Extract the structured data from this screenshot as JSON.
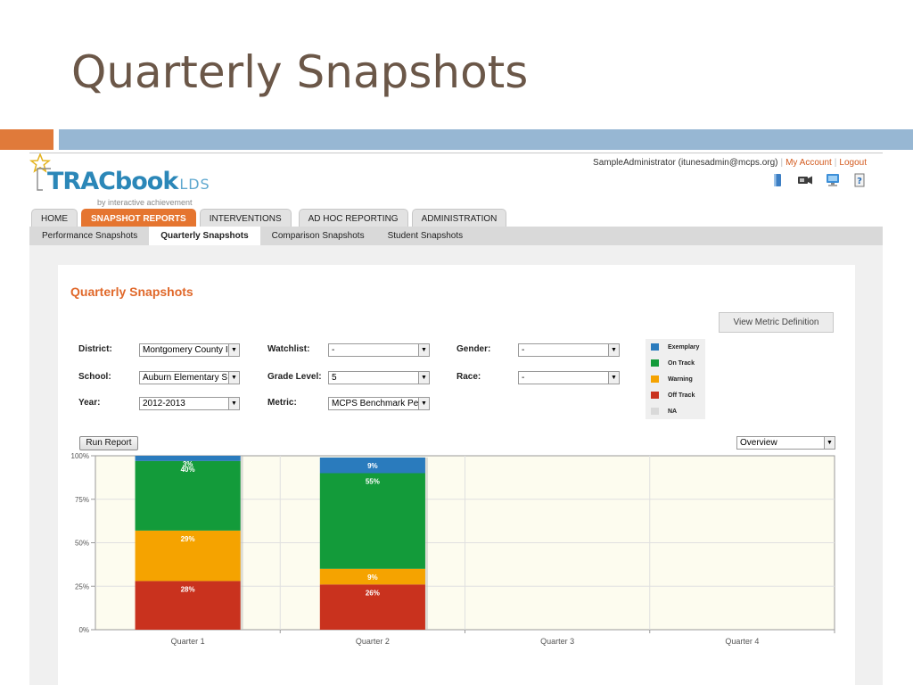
{
  "slide": {
    "title": "Quarterly Snapshots"
  },
  "header": {
    "logo_main": "TRACbook",
    "logo_suffix": "LDS",
    "logo_tagline": "by interactive achievement",
    "user": "SampleAdministrator (itunesadmin@mcps.org)",
    "my_account": "My Account",
    "logout": "Logout",
    "icons": [
      "book-icon",
      "video-camera-icon",
      "monitor-icon",
      "help-icon"
    ]
  },
  "main_tabs": [
    {
      "label": "HOME",
      "active": false
    },
    {
      "label": "SNAPSHOT REPORTS",
      "active": true
    },
    {
      "label": "INTERVENTIONS",
      "active": false
    },
    {
      "label": "AD HOC REPORTING",
      "active": false
    },
    {
      "label": "ADMINISTRATION",
      "active": false
    }
  ],
  "sub_tabs": [
    {
      "label": "Performance Snapshots",
      "active": false
    },
    {
      "label": "Quarterly Snapshots",
      "active": true
    },
    {
      "label": "Comparison Snapshots",
      "active": false
    },
    {
      "label": "Student Snapshots",
      "active": false
    }
  ],
  "panel": {
    "title": "Quarterly Snapshots",
    "view_metric_label": "View Metric Definition",
    "run_report_label": "Run Report"
  },
  "filters": {
    "district": {
      "label": "District:",
      "value": "Montgomery County I"
    },
    "school": {
      "label": "School:",
      "value": "Auburn Elementary S"
    },
    "year": {
      "label": "Year:",
      "value": "2012-2013"
    },
    "watchlist": {
      "label": "Watchlist:",
      "value": "-"
    },
    "grade_level": {
      "label": "Grade Level:",
      "value": "5"
    },
    "metric": {
      "label": "Metric:",
      "value": "MCPS Benchmark Pe"
    },
    "gender": {
      "label": "Gender:",
      "value": "-"
    },
    "race": {
      "label": "Race:",
      "value": "-"
    },
    "view": {
      "value": "Overview"
    }
  },
  "legend": [
    {
      "label": "Exemplary",
      "color": "#2a7bbd"
    },
    {
      "label": "On Track",
      "color": "#139b3a"
    },
    {
      "label": "Warning",
      "color": "#f5a300"
    },
    {
      "label": "Off Track",
      "color": "#c9321e"
    },
    {
      "label": "NA",
      "color": "#d9d9d9"
    }
  ],
  "chart_data": {
    "type": "bar",
    "stacked": true,
    "categories": [
      "Quarter 1",
      "Quarter 2",
      "Quarter 3",
      "Quarter 4"
    ],
    "y_ticks": [
      "0%",
      "25%",
      "50%",
      "75%",
      "100%"
    ],
    "ylim": [
      0,
      100
    ],
    "series": [
      {
        "name": "Off Track",
        "color": "#c9321e",
        "values": [
          28,
          26,
          null,
          null
        ],
        "labels": [
          "28%",
          "26%",
          null,
          null
        ]
      },
      {
        "name": "Warning",
        "color": "#f5a300",
        "values": [
          29,
          9,
          null,
          null
        ],
        "labels": [
          "29%",
          "9%",
          null,
          null
        ]
      },
      {
        "name": "On Track",
        "color": "#139b3a",
        "values": [
          40,
          55,
          null,
          null
        ],
        "labels": [
          "40%",
          "55%",
          null,
          null
        ]
      },
      {
        "name": "Exemplary",
        "color": "#2a7bbd",
        "values": [
          3,
          9,
          null,
          null
        ],
        "labels": [
          "3%",
          "9%",
          null,
          null
        ]
      }
    ]
  }
}
